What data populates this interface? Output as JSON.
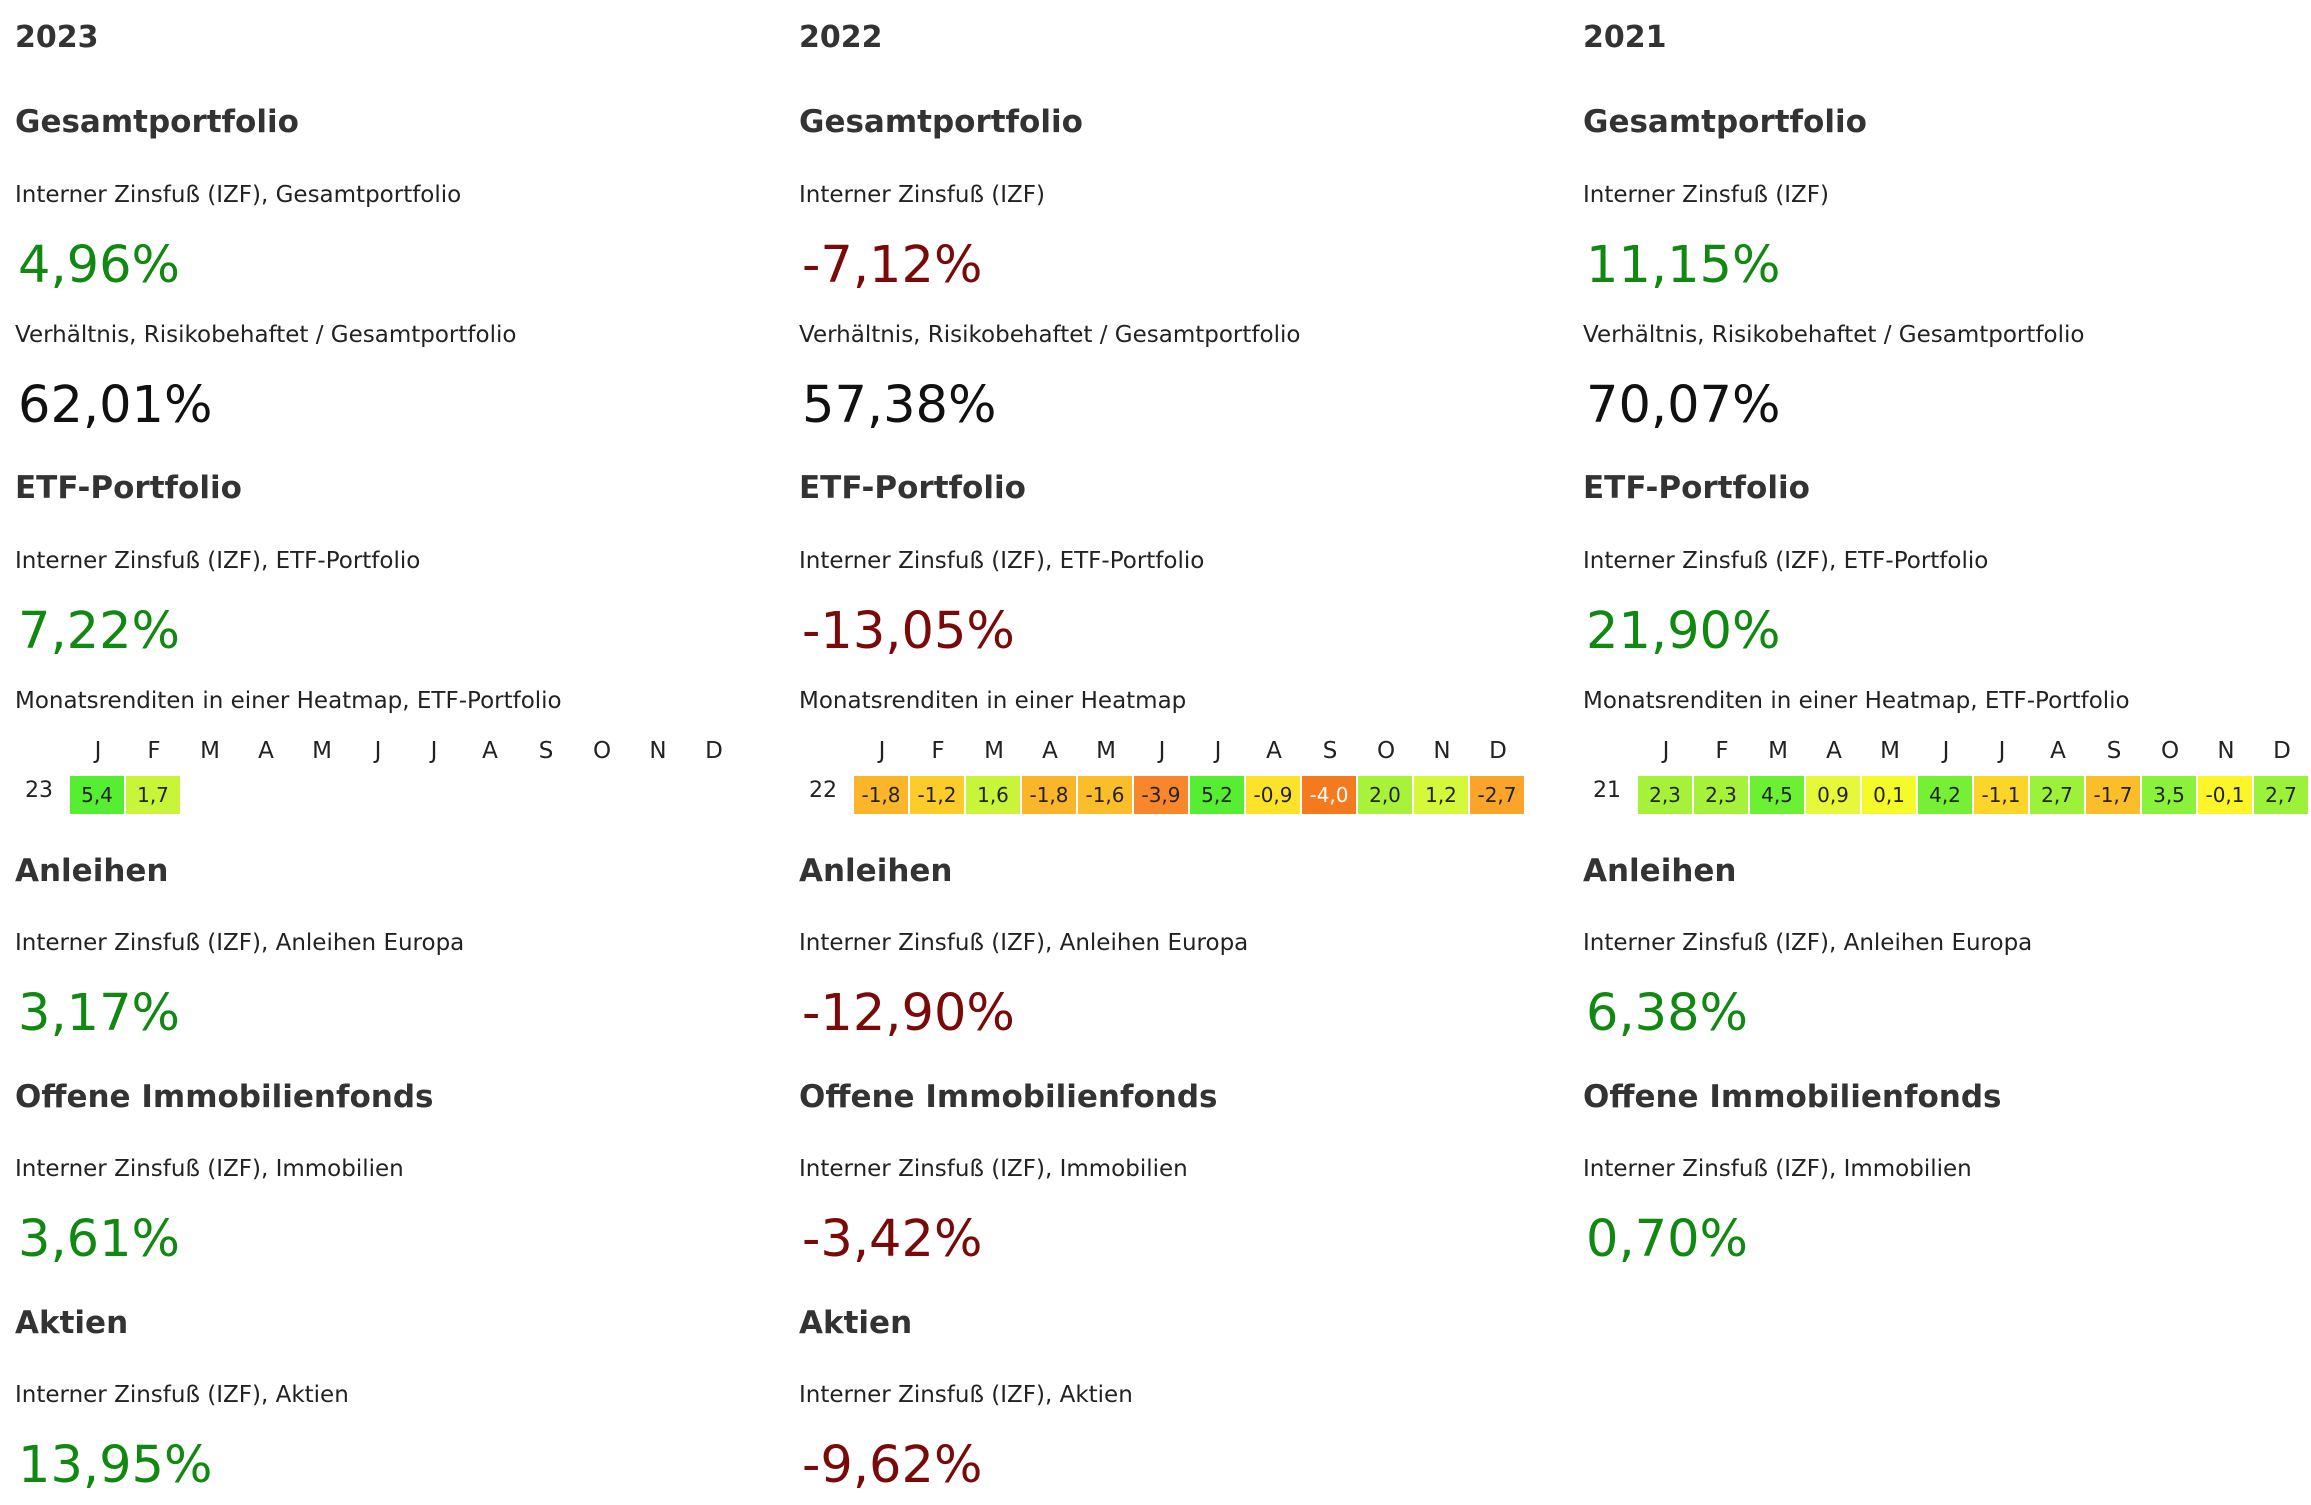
{
  "months": [
    "J",
    "F",
    "M",
    "A",
    "M",
    "J",
    "J",
    "A",
    "S",
    "O",
    "N",
    "D"
  ],
  "columns": [
    {
      "year": "2023",
      "total_title": "Gesamtportfolio",
      "total_irr_label": "Interner Zinsfuß (IZF), Gesamtportfolio",
      "total_irr": "4,96%",
      "ratio_label": "Verhältnis, Risikobehaftet / Gesamtportfolio",
      "ratio": "62,01%",
      "etf_title": "ETF-Portfolio",
      "etf_irr_label": "Interner Zinsfuß (IZF), ETF-Portfolio",
      "etf_irr": "7,22%",
      "heatmap_label": "Monatsrenditen in einer Heatmap, ETF-Portfolio",
      "heatmap_year": "23",
      "heatmap_values": [
        "5,4",
        "1,7"
      ],
      "heatmap_colors": [
        "#55ee33",
        "#c8f53a"
      ],
      "bonds_title": "Anleihen",
      "bonds_irr_label": "Interner Zinsfuß (IZF), Anleihen Europa",
      "bonds_irr": "3,17%",
      "realestate_title": "Offene Immobilienfonds",
      "realestate_irr_label": "Interner Zinsfuß (IZF), Immobilien",
      "realestate_irr": "3,61%",
      "stocks_title": "Aktien",
      "stocks_irr_label": "Interner Zinsfuß (IZF), Aktien",
      "stocks_irr": "13,95%"
    },
    {
      "year": "2022",
      "total_title": "Gesamtportfolio",
      "total_irr_label": "Interner Zinsfuß (IZF)",
      "total_irr": "-7,12%",
      "ratio_label": "Verhältnis, Risikobehaftet / Gesamtportfolio",
      "ratio": "57,38%",
      "etf_title": "ETF-Portfolio",
      "etf_irr_label": "Interner Zinsfuß (IZF), ETF-Portfolio",
      "etf_irr": "-13,05%",
      "heatmap_label": "Monatsrenditen in einer Heatmap",
      "heatmap_year": "22",
      "heatmap_values": [
        "-1,8",
        "-1,2",
        "1,6",
        "-1,8",
        "-1,6",
        "-3,9",
        "5,2",
        "-0,9",
        "-4,0",
        "2,0",
        "1,2",
        "-2,7"
      ],
      "heatmap_colors": [
        "#fbb52a",
        "#fccc2a",
        "#c8f53a",
        "#fbb52a",
        "#fbbd2a",
        "#f8862a",
        "#55ee33",
        "#fde22a",
        "#f57a1e",
        "#a9f23a",
        "#d4f83a",
        "#faa52a"
      ],
      "bonds_title": "Anleihen",
      "bonds_irr_label": "Interner Zinsfuß (IZF), Anleihen Europa",
      "bonds_irr": "-12,90%",
      "realestate_title": "Offene Immobilienfonds",
      "realestate_irr_label": "Interner Zinsfuß (IZF), Immobilien",
      "realestate_irr": "-3,42%",
      "stocks_title": "Aktien",
      "stocks_irr_label": "Interner Zinsfuß (IZF), Aktien",
      "stocks_irr": "-9,62%"
    },
    {
      "year": "2021",
      "total_title": "Gesamtportfolio",
      "total_irr_label": "Interner Zinsfuß (IZF)",
      "total_irr": "11,15%",
      "ratio_label": "Verhältnis, Risikobehaftet / Gesamtportfolio",
      "ratio": "70,07%",
      "etf_title": "ETF-Portfolio",
      "etf_irr_label": "Interner Zinsfuß (IZF), ETF-Portfolio",
      "etf_irr": "21,90%",
      "heatmap_label": "Monatsrenditen in einer Heatmap, ETF-Portfolio",
      "heatmap_year": "21",
      "heatmap_values": [
        "2,3",
        "2,3",
        "4,5",
        "0,9",
        "0,1",
        "4,2",
        "-1,1",
        "2,7",
        "-1,7",
        "3,5",
        "-0,1",
        "2,7"
      ],
      "heatmap_colors": [
        "#a6f23a",
        "#a6f23a",
        "#6cf034",
        "#e6f83a",
        "#f5fb2a",
        "#75f034",
        "#fcd52a",
        "#9cf23a",
        "#fbbd2a",
        "#8af23a",
        "#fcf52a",
        "#9cf23a"
      ],
      "bonds_title": "Anleihen",
      "bonds_irr_label": "Interner Zinsfuß (IZF), Anleihen Europa",
      "bonds_irr": "6,38%",
      "realestate_title": "Offene Immobilienfonds",
      "realestate_irr_label": "Interner Zinsfuß (IZF), Immobilien",
      "realestate_irr": "0,70%"
    }
  ]
}
